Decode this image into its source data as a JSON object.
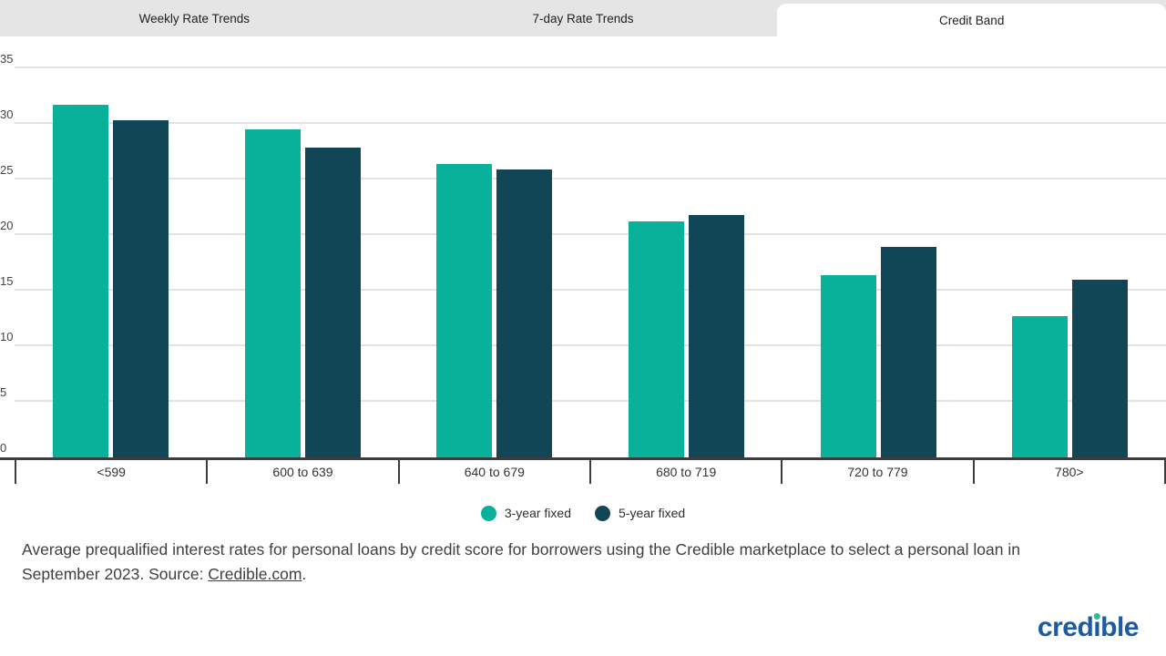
{
  "tabs": [
    {
      "label": "Weekly Rate Trends",
      "active": false
    },
    {
      "label": "7-day Rate Trends",
      "active": false
    },
    {
      "label": "Credit Band",
      "active": true
    }
  ],
  "chart_data": {
    "type": "bar",
    "categories": [
      "<599",
      "600 to 639",
      "640 to 679",
      "680 to 719",
      "720 to 779",
      "780>"
    ],
    "series": [
      {
        "name": "3-year fixed",
        "color": "#08b19a",
        "values": [
          31.7,
          29.5,
          26.4,
          21.2,
          16.4,
          12.7
        ]
      },
      {
        "name": "5-year fixed",
        "color": "#104655",
        "values": [
          30.3,
          27.9,
          25.9,
          21.8,
          18.9,
          16.0
        ]
      }
    ],
    "title": "",
    "xlabel": "",
    "ylabel": "",
    "ylim": [
      0,
      35
    ],
    "ytick_interval": 5,
    "grid": true,
    "legend_position": "bottom",
    "units": "percent"
  },
  "footer": {
    "text_before_link": "Average prequalified interest rates for personal loans by credit score for borrowers using the Credible marketplace to select a personal loan in September 2023. Source: ",
    "link_text": "Credible.com",
    "text_after_link": "."
  },
  "logo": {
    "part1": "cred",
    "dotless_i": "ı",
    "part2": "ble",
    "brand_color": "#1d5aa4",
    "dot_color": "#27bd90"
  }
}
